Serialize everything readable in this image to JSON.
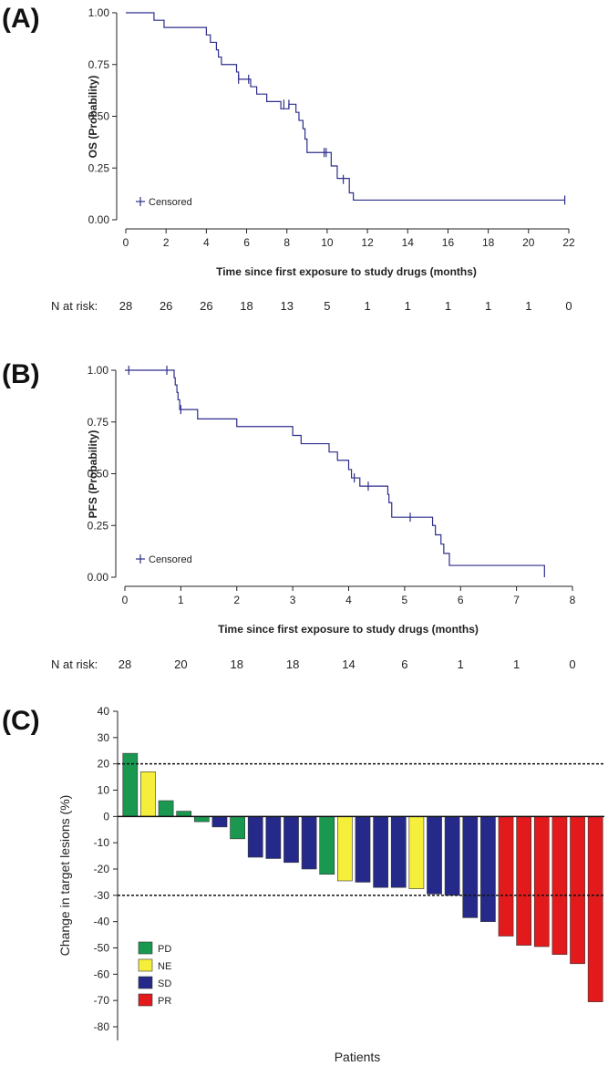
{
  "colors": {
    "km_line": "#2e2e8c",
    "PD": "#1a9850",
    "NE": "#f5ee3a",
    "SD": "#252a8a",
    "PR": "#e31a1c"
  },
  "chart_data": [
    {
      "panel": "(A)",
      "type": "line",
      "ylabel": "OS (Probability)",
      "xlabel": "Time since first exposure to study drugs (months)",
      "xlim": [
        0,
        22
      ],
      "ylim": [
        0,
        1
      ],
      "xticks": [
        "0",
        "2",
        "4",
        "6",
        "8",
        "10",
        "12",
        "14",
        "16",
        "18",
        "20",
        "22"
      ],
      "yticks": [
        "0.00",
        "0.25",
        "0.50",
        "0.75",
        "1.00"
      ],
      "legend": "Censored",
      "legend_position": "bottom-left",
      "steps": [
        [
          0,
          1.0
        ],
        [
          1.4,
          0.964
        ],
        [
          1.9,
          0.929
        ],
        [
          4.0,
          0.893
        ],
        [
          4.2,
          0.857
        ],
        [
          4.5,
          0.821
        ],
        [
          4.6,
          0.786
        ],
        [
          4.75,
          0.75
        ],
        [
          5.5,
          0.714
        ],
        [
          5.6,
          0.679
        ],
        [
          6.2,
          0.643
        ],
        [
          6.5,
          0.607
        ],
        [
          7.0,
          0.571
        ],
        [
          7.7,
          0.536
        ],
        [
          8.1,
          0.558
        ],
        [
          8.45,
          0.519
        ],
        [
          8.6,
          0.48
        ],
        [
          8.8,
          0.44
        ],
        [
          8.9,
          0.39
        ],
        [
          9.0,
          0.325
        ],
        [
          10.2,
          0.26
        ],
        [
          10.5,
          0.2
        ],
        [
          11.1,
          0.13
        ],
        [
          11.3,
          0.095
        ],
        [
          21.8,
          0.095
        ]
      ],
      "censored": [
        [
          5.6,
          0.679
        ],
        [
          6.1,
          0.679
        ],
        [
          7.85,
          0.558
        ],
        [
          8.1,
          0.558
        ],
        [
          9.85,
          0.325
        ],
        [
          9.95,
          0.325
        ],
        [
          10.8,
          0.195
        ],
        [
          21.8,
          0.095
        ]
      ],
      "risk_label": "N at risk:",
      "risk_values": [
        "28",
        "26",
        "26",
        "18",
        "13",
        "5",
        "1",
        "1",
        "1",
        "1",
        "1",
        "0"
      ]
    },
    {
      "panel": "(B)",
      "type": "line",
      "ylabel": "PFS (Probability)",
      "xlabel": "Time since first exposure to study drugs (months)",
      "xlim": [
        0,
        8
      ],
      "ylim": [
        0,
        1
      ],
      "xticks": [
        "0",
        "1",
        "2",
        "3",
        "4",
        "5",
        "6",
        "7",
        "8"
      ],
      "yticks": [
        "0.00",
        "0.25",
        "0.50",
        "0.75",
        "1.00"
      ],
      "legend": "Censored",
      "legend_position": "bottom-left",
      "steps": [
        [
          0,
          1.0
        ],
        [
          0.88,
          0.964
        ],
        [
          0.9,
          0.929
        ],
        [
          0.93,
          0.893
        ],
        [
          0.95,
          0.857
        ],
        [
          0.98,
          0.81
        ],
        [
          1.3,
          0.765
        ],
        [
          2.0,
          0.728
        ],
        [
          3.0,
          0.685
        ],
        [
          3.15,
          0.645
        ],
        [
          3.65,
          0.605
        ],
        [
          3.8,
          0.565
        ],
        [
          4.0,
          0.52
        ],
        [
          4.05,
          0.48
        ],
        [
          4.2,
          0.44
        ],
        [
          4.7,
          0.4
        ],
        [
          4.72,
          0.36
        ],
        [
          4.77,
          0.29
        ],
        [
          5.5,
          0.25
        ],
        [
          5.55,
          0.205
        ],
        [
          5.65,
          0.16
        ],
        [
          5.7,
          0.115
        ],
        [
          5.8,
          0.057
        ],
        [
          7.5,
          0.057
        ],
        [
          7.5,
          0.0
        ]
      ],
      "censored": [
        [
          0.07,
          1.0
        ],
        [
          0.75,
          1.0
        ],
        [
          1.0,
          0.81
        ],
        [
          4.1,
          0.48
        ],
        [
          4.35,
          0.44
        ],
        [
          5.1,
          0.29
        ]
      ],
      "risk_label": "N at risk:",
      "risk_values": [
        "28",
        "20",
        "18",
        "18",
        "14",
        "6",
        "1",
        "1",
        "0"
      ]
    },
    {
      "panel": "(C)",
      "type": "bar",
      "ylabel": "Change in target lesions (%)",
      "xlabel": "Patients",
      "ylim": [
        -80,
        40
      ],
      "yticks": [
        "40",
        "30",
        "20",
        "10",
        "0",
        "-10",
        "-20",
        "-30",
        "-40",
        "-50",
        "-60",
        "-70",
        "-80"
      ],
      "reference_lines": [
        20,
        -30
      ],
      "legend": [
        "PD",
        "NE",
        "SD",
        "PR"
      ],
      "legend_position": "bottom-left",
      "values": [
        24,
        17,
        6,
        2,
        -2,
        -4,
        -8.5,
        -15.5,
        -16,
        -17.5,
        -20,
        -22,
        -24.5,
        -25,
        -27,
        -27,
        -27.5,
        -29.5,
        -30,
        -38.5,
        -40,
        -45.5,
        -49,
        -49.5,
        -52.5,
        -56,
        -70.5
      ],
      "categories_response": [
        "PD",
        "NE",
        "PD",
        "PD",
        "PD",
        "SD",
        "PD",
        "SD",
        "SD",
        "SD",
        "SD",
        "PD",
        "NE",
        "SD",
        "SD",
        "SD",
        "NE",
        "SD",
        "SD",
        "SD",
        "SD",
        "PR",
        "PR",
        "PR",
        "PR",
        "PR",
        "PR"
      ]
    }
  ]
}
